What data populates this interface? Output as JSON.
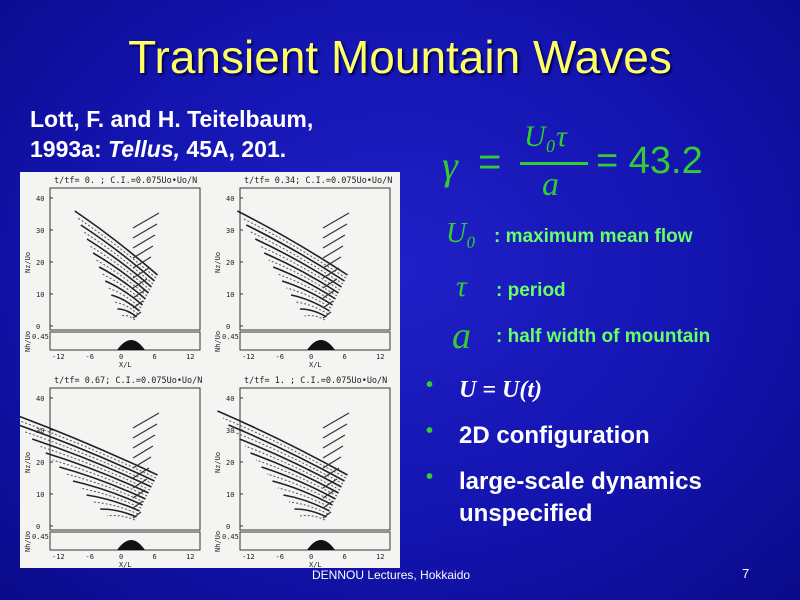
{
  "slide": {
    "title": "Transient Mountain Waves",
    "reference_line1": "Lott, F. and H. Teitelbaum,",
    "reference_line2_prefix": "1993a: ",
    "reference_journal": "Tellus,",
    "reference_line2_suffix": " 45A, 201.",
    "formula": {
      "lhs": "γ",
      "equals": "=",
      "numerator": "U₀τ",
      "denominator": "a",
      "result": "= 43.2"
    },
    "definitions": [
      {
        "symbol": "U₀",
        "text": ": maximum mean flow"
      },
      {
        "symbol": "τ",
        "text": ": period"
      },
      {
        "symbol": "a",
        "text": ": half width of mountain"
      }
    ],
    "bullets": [
      {
        "text": "U = U(t)"
      },
      {
        "text": "2D configuration"
      },
      {
        "text": "large-scale dynamics unspecified"
      }
    ],
    "footer": "DENNOU Lectures, Hokkaido",
    "page_number": "7",
    "colors": {
      "background": "#1414b0",
      "title": "#ffff66",
      "accent_green": "#33cc33",
      "definition_text": "#66ff66"
    }
  },
  "figure": {
    "panels": [
      {
        "header": "t/tf=  0.  ; C.I.=0.075Uo•Uo/N"
      },
      {
        "header": "t/tf= 0.34; C.I.=0.075Uo•Uo/N"
      },
      {
        "header": "t/tf= 0.67; C.I.=0.075Uo•Uo/N"
      },
      {
        "header": "t/tf= 1.  ; C.I.=0.075Uo•Uo/N"
      }
    ],
    "y_ticks": [
      "40",
      "30",
      "20",
      "10",
      "0"
    ],
    "y_label": "Nz/Uo",
    "lower_y_label": "Nh/Uo",
    "lower_y_tick": "0.45",
    "x_ticks": [
      "-12",
      "-6",
      "0",
      "6",
      "12"
    ],
    "x_label": "X/L"
  }
}
